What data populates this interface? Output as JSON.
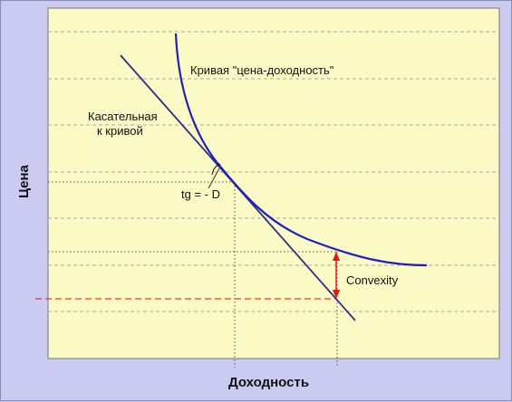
{
  "diagram": {
    "y_axis_label": "Цена",
    "x_axis_label": "Доходность",
    "curve_label": "Кривая \"цена-доходность\"",
    "tangent_label_line1": "Касательная",
    "tangent_label_line2": "к кривой",
    "slope_label": "tg = - D",
    "convexity_label": "Convexity",
    "colors": {
      "background": "#cbcbf2",
      "plot_area": "#fbf9c4",
      "curve": "#1f1fc2",
      "tangent": "#2c2c8c",
      "convexity_arrow": "#ee1111",
      "dashed_level": "#dd1111",
      "grid": "#a9a9a9",
      "guide_lines": "#555555"
    }
  }
}
